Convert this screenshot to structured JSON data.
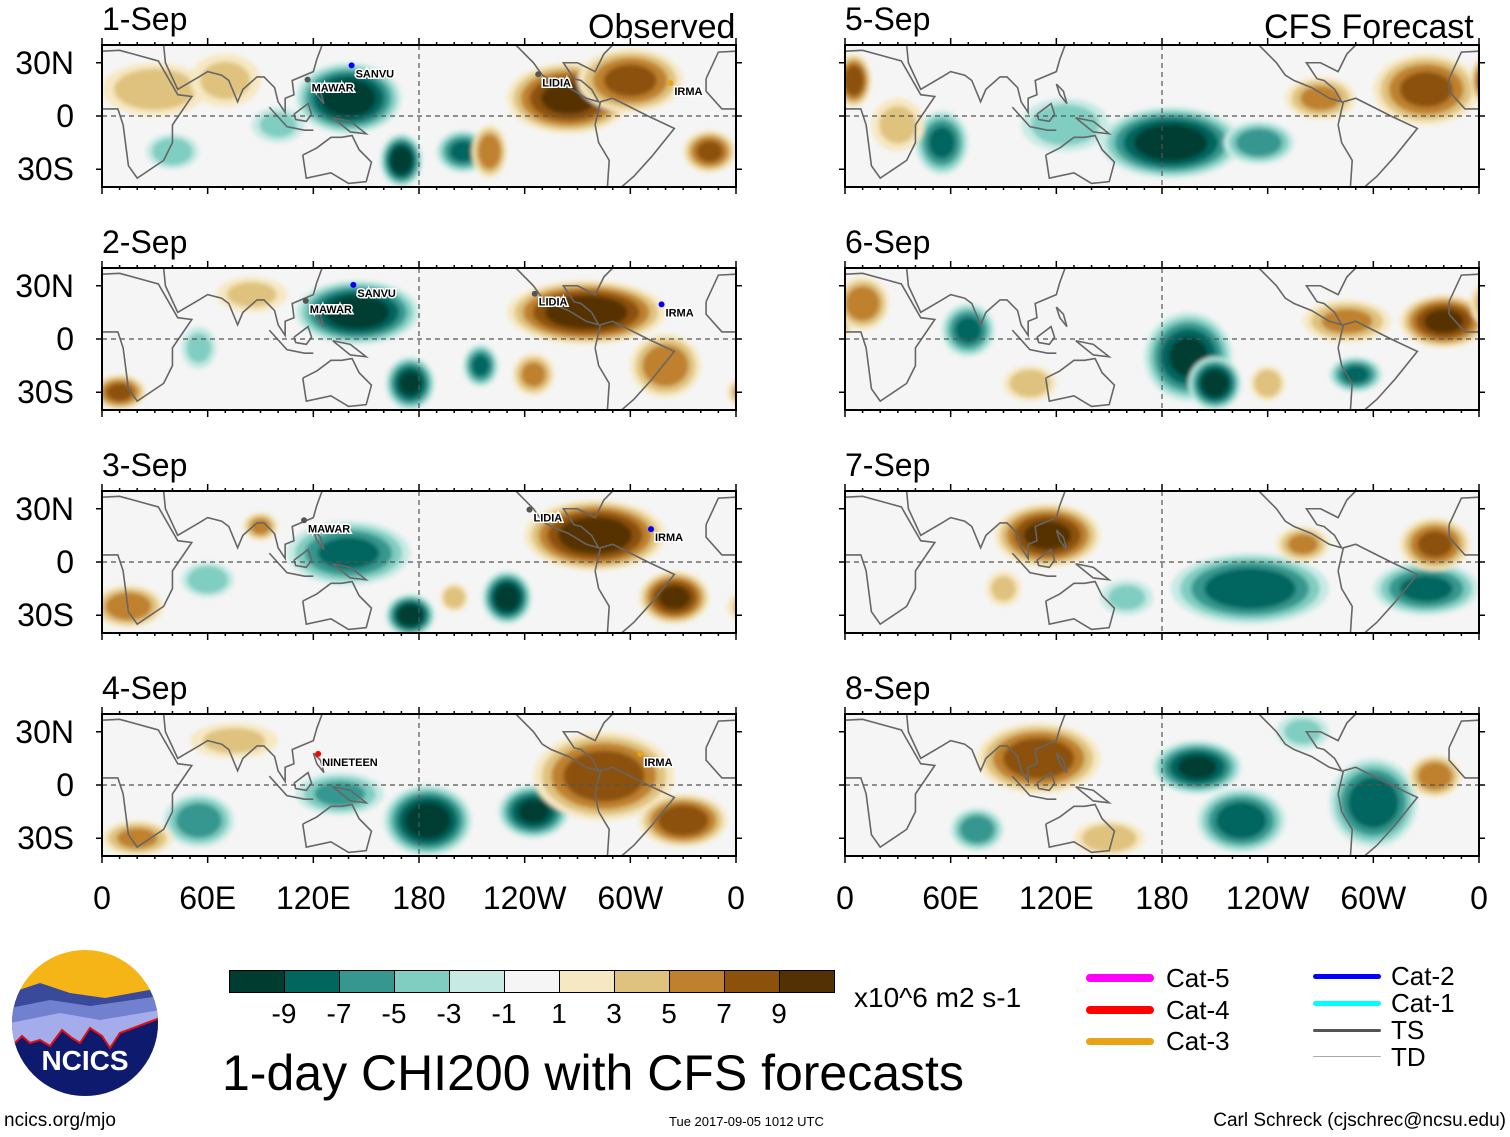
{
  "title": "1-day CHI200 with CFS forecasts",
  "left_header": "Observed",
  "right_header": "CFS Forecast",
  "units": "x10^6 m2 s-1",
  "footer": {
    "left": "ncics.org/mjo",
    "center": "Tue 2017-09-05 1012 UTC",
    "right": "Carl Schreck (cjschrec@ncsu.edu)"
  },
  "logo_text": "NCICS",
  "colors": {
    "levels": [
      "#003c30",
      "#01665e",
      "#35978f",
      "#80cdc1",
      "#c7eae5",
      "#f5f5f5",
      "#f6e8c3",
      "#dfc27d",
      "#bf812d",
      "#8c510a",
      "#543005"
    ]
  },
  "colorbar_labels": [
    "-9",
    "-7",
    "-5",
    "-3",
    "-1",
    "1",
    "3",
    "5",
    "7",
    "9"
  ],
  "legend": [
    {
      "label": "Cat-5",
      "color": "#ff00ff"
    },
    {
      "label": "Cat-4",
      "color": "#ff0000"
    },
    {
      "label": "Cat-3",
      "color": "#e8a317"
    },
    {
      "label": "Cat-2",
      "color": "#0000ff"
    },
    {
      "label": "Cat-1",
      "color": "#00ffff"
    },
    {
      "label": "TS",
      "color": "#555555"
    },
    {
      "label": "TD",
      "color": "#aaaaaa"
    }
  ],
  "chart_data": {
    "type": "heatmap",
    "variable": "CHI200 anomaly",
    "x_ticks": [
      "0",
      "60E",
      "120E",
      "180",
      "120W",
      "60W",
      "0"
    ],
    "y_ticks": [
      "30N",
      "0",
      "30S"
    ],
    "lon_range": [
      0,
      360
    ],
    "lat_range": [
      -40,
      40
    ],
    "panels": [
      {
        "date": "1-Sep",
        "kind": "observed",
        "anomalies": [
          [
            140,
            10,
            30,
            20,
            -10
          ],
          [
            170,
            -25,
            12,
            15,
            -10
          ],
          [
            205,
            -20,
            15,
            12,
            -7
          ],
          [
            40,
            -20,
            15,
            10,
            -4
          ],
          [
            100,
            -5,
            15,
            10,
            -3
          ],
          [
            265,
            10,
            35,
            20,
            9
          ],
          [
            300,
            20,
            30,
            18,
            7
          ],
          [
            220,
            -20,
            10,
            15,
            6
          ],
          [
            30,
            15,
            30,
            15,
            4
          ],
          [
            345,
            -20,
            15,
            12,
            7
          ],
          [
            70,
            20,
            20,
            15,
            3
          ]
        ],
        "storms": [
          {
            "name": "SANVU",
            "lon": 144,
            "lat": 24,
            "color": "#0000ff"
          },
          {
            "name": "MAWAR",
            "lon": 119,
            "lat": 16,
            "color": "#555555"
          },
          {
            "name": "LIDIA",
            "lon": 250,
            "lat": 19,
            "color": "#555555"
          },
          {
            "name": "IRMA",
            "lon": 325,
            "lat": 14,
            "color": "#e8a317"
          }
        ]
      },
      {
        "date": "5-Sep",
        "kind": "forecast",
        "anomalies": [
          [
            185,
            -15,
            40,
            20,
            -10
          ],
          [
            235,
            -15,
            20,
            12,
            -6
          ],
          [
            55,
            -15,
            15,
            18,
            -7
          ],
          [
            125,
            -5,
            25,
            15,
            -4
          ],
          [
            330,
            15,
            30,
            20,
            7
          ],
          [
            270,
            10,
            20,
            12,
            5
          ],
          [
            5,
            20,
            10,
            15,
            8
          ],
          [
            30,
            -5,
            15,
            15,
            3
          ]
        ],
        "storms": []
      },
      {
        "date": "2-Sep",
        "kind": "observed",
        "anomalies": [
          [
            145,
            15,
            35,
            18,
            -10
          ],
          [
            175,
            -25,
            14,
            15,
            -9
          ],
          [
            215,
            -15,
            10,
            12,
            -7
          ],
          [
            55,
            -5,
            10,
            12,
            -3
          ],
          [
            275,
            15,
            45,
            18,
            10
          ],
          [
            10,
            -30,
            15,
            10,
            7
          ],
          [
            320,
            -15,
            20,
            18,
            6
          ],
          [
            245,
            -20,
            12,
            12,
            5
          ],
          [
            85,
            25,
            20,
            10,
            3
          ]
        ],
        "storms": [
          {
            "name": "SANVU",
            "lon": 145,
            "lat": 26,
            "color": "#0000ff"
          },
          {
            "name": "MAWAR",
            "lon": 118,
            "lat": 17,
            "color": "#555555"
          },
          {
            "name": "LIDIA",
            "lon": 248,
            "lat": 21,
            "color": "#555555"
          },
          {
            "name": "IRMA",
            "lon": 320,
            "lat": 15,
            "color": "#0000ff"
          }
        ]
      },
      {
        "date": "6-Sep",
        "kind": "forecast",
        "anomalies": [
          [
            195,
            -10,
            25,
            25,
            -9
          ],
          [
            210,
            -25,
            15,
            15,
            -10
          ],
          [
            70,
            5,
            15,
            15,
            -7
          ],
          [
            290,
            -20,
            15,
            10,
            -7
          ],
          [
            340,
            10,
            25,
            15,
            9
          ],
          [
            285,
            10,
            25,
            12,
            5
          ],
          [
            10,
            20,
            15,
            15,
            6
          ],
          [
            105,
            -25,
            15,
            10,
            4
          ],
          [
            240,
            -25,
            10,
            10,
            4
          ]
        ],
        "storms": []
      },
      {
        "date": "3-Sep",
        "kind": "observed",
        "anomalies": [
          [
            140,
            5,
            35,
            18,
            -7
          ],
          [
            175,
            -30,
            14,
            12,
            -10
          ],
          [
            230,
            -20,
            14,
            15,
            -10
          ],
          [
            60,
            -10,
            15,
            10,
            -4
          ],
          [
            280,
            15,
            40,
            20,
            10
          ],
          [
            325,
            -20,
            20,
            15,
            9
          ],
          [
            15,
            -25,
            20,
            12,
            6
          ],
          [
            90,
            20,
            10,
            8,
            5
          ],
          [
            200,
            -20,
            8,
            8,
            4
          ]
        ],
        "storms": [
          {
            "name": "MAWAR",
            "lon": 117,
            "lat": 19,
            "color": "#555555"
          },
          {
            "name": "LIDIA",
            "lon": 245,
            "lat": 25,
            "color": "#555555"
          },
          {
            "name": "IRMA",
            "lon": 314,
            "lat": 14,
            "color": "#0000ff"
          }
        ]
      },
      {
        "date": "7-Sep",
        "kind": "forecast",
        "anomalies": [
          [
            230,
            -15,
            45,
            20,
            -8
          ],
          [
            330,
            -15,
            30,
            15,
            -7
          ],
          [
            160,
            -20,
            15,
            10,
            -3
          ],
          [
            115,
            15,
            30,
            18,
            9
          ],
          [
            260,
            10,
            15,
            10,
            5
          ],
          [
            335,
            10,
            20,
            15,
            7
          ],
          [
            90,
            -15,
            10,
            10,
            3
          ]
        ],
        "storms": []
      },
      {
        "date": "4-Sep",
        "kind": "observed",
        "anomalies": [
          [
            135,
            -5,
            25,
            12,
            -5
          ],
          [
            185,
            -20,
            25,
            20,
            -10
          ],
          [
            245,
            -15,
            20,
            15,
            -9
          ],
          [
            55,
            -20,
            20,
            15,
            -6
          ],
          [
            285,
            5,
            40,
            25,
            8
          ],
          [
            330,
            -20,
            25,
            15,
            8
          ],
          [
            75,
            25,
            25,
            10,
            3
          ],
          [
            20,
            -30,
            20,
            10,
            5
          ]
        ],
        "storms": [
          {
            "name": "NINETEEN",
            "lon": 125,
            "lat": 13,
            "color": "#ff0000"
          },
          {
            "name": "IRMA",
            "lon": 308,
            "lat": 13,
            "color": "#e8a317"
          }
        ]
      },
      {
        "date": "8-Sep",
        "kind": "forecast",
        "anomalies": [
          [
            200,
            10,
            25,
            15,
            -9
          ],
          [
            225,
            -20,
            25,
            18,
            -8
          ],
          [
            300,
            -10,
            25,
            25,
            -8
          ],
          [
            75,
            -25,
            15,
            12,
            -6
          ],
          [
            260,
            30,
            15,
            10,
            -3
          ],
          [
            110,
            15,
            35,
            20,
            8
          ],
          [
            335,
            5,
            15,
            12,
            6
          ],
          [
            150,
            -30,
            20,
            10,
            4
          ]
        ],
        "storms": []
      }
    ]
  }
}
